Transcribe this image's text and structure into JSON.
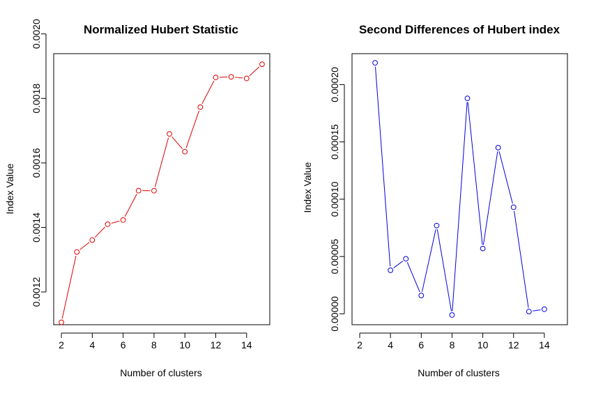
{
  "chart_data": [
    {
      "type": "line",
      "title": "Normalized Hubert Statistic",
      "xlabel": "Number of clusters",
      "ylabel": "Index Value",
      "x": [
        2,
        3,
        4,
        5,
        6,
        7,
        8,
        9,
        10,
        11,
        12,
        13,
        14,
        15
      ],
      "series": [
        {
          "values": [
            0.001106,
            0.001324,
            0.001361,
            0.00141,
            0.001423,
            0.001514,
            0.001514,
            0.00169,
            0.001635,
            0.001773,
            0.001865,
            0.001867,
            0.001862,
            0.001906
          ]
        }
      ],
      "xlim": [
        1.5,
        15.5
      ],
      "ylim": [
        0.0010985,
        0.0019388
      ],
      "xticks": [
        2,
        4,
        6,
        8,
        10,
        12,
        14
      ],
      "xtick_labels": [
        "2",
        "4",
        "6",
        "8",
        "10",
        "12",
        "14"
      ],
      "yticks": [
        0.0012,
        0.0014,
        0.0016,
        0.0018,
        0.002
      ],
      "ytick_labels": [
        "0.0012",
        "0.0014",
        "0.0016",
        "0.0018",
        "0.0020"
      ],
      "color": "#dd0000",
      "marker": "open-circle",
      "line_style": "solid",
      "grid": false,
      "legend": "none"
    },
    {
      "type": "line",
      "title": "Second Differences of Hubert index",
      "xlabel": "Number of clusters",
      "ylabel": "Index Value",
      "x": [
        3,
        4,
        5,
        6,
        7,
        8,
        9,
        10,
        11,
        12,
        13,
        14
      ],
      "series": [
        {
          "values": [
            0.000219,
            3.8e-05,
            4.8e-05,
            1.6e-05,
            7.7e-05,
            -1e-06,
            0.000188,
            5.7e-05,
            0.000145,
            9.3e-05,
            2e-06,
            4e-06
          ]
        }
      ],
      "xlim": [
        1.5,
        15.5
      ],
      "ylim": [
        -9.5e-06,
        0.000227
      ],
      "xticks": [
        2,
        4,
        6,
        8,
        10,
        12,
        14
      ],
      "xtick_labels": [
        "2",
        "4",
        "6",
        "8",
        "10",
        "12",
        "14"
      ],
      "yticks": [
        0,
        5e-05,
        0.0001,
        0.00015,
        0.0002
      ],
      "ytick_labels": [
        "0.00000",
        "0.00005",
        "0.00010",
        "0.00015",
        "0.00020"
      ],
      "color": "#0000dd",
      "marker": "open-circle",
      "line_style": "solid",
      "grid": false,
      "legend": "none"
    }
  ]
}
